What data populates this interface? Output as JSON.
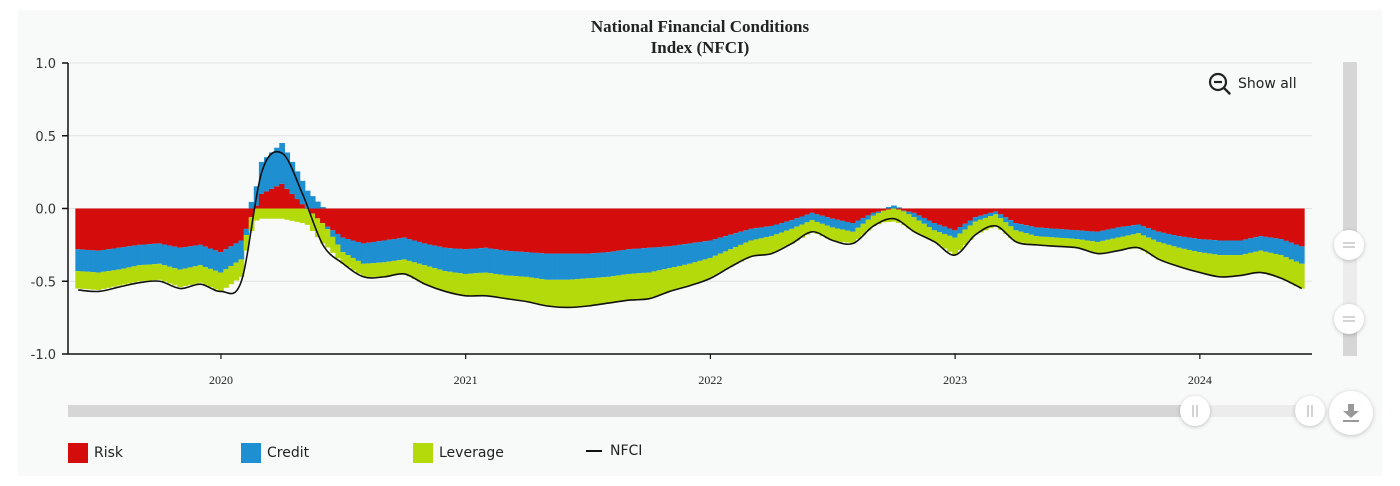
{
  "title_line1": "National Financial Conditions",
  "title_line2": "Index (NFCI)",
  "controls": {
    "show_all_label": "Show all",
    "zoom_out_icon": "magnifier-minus-icon",
    "download_icon": "download-arrow-icon"
  },
  "colors": {
    "risk": "#d40c0c",
    "credit": "#1e8fd0",
    "leverage": "#b5da0c",
    "nfci": "#111111",
    "grid": "#e2e2e2",
    "panel": "#f8f9f9"
  },
  "legend": [
    {
      "key": "risk",
      "label": "Risk",
      "kind": "swatch"
    },
    {
      "key": "credit",
      "label": "Credit",
      "kind": "swatch"
    },
    {
      "key": "leverage",
      "label": "Leverage",
      "kind": "swatch"
    },
    {
      "key": "nfci",
      "label": "NFCI",
      "kind": "line"
    }
  ],
  "chart_data": {
    "type": "bar",
    "stacked": true,
    "title": "National Financial Conditions Index (NFCI)",
    "xlabel": "",
    "ylabel": "",
    "ylim": [
      -1.0,
      1.0
    ],
    "yticks": [
      1.0,
      0.5,
      0.0,
      -0.5,
      -1.0
    ],
    "ytick_labels": [
      "1.0",
      "0.5",
      "0.0",
      "-0.5",
      "-1.0"
    ],
    "xlim": [
      "2019-06",
      "2024-06"
    ],
    "xticks": [
      "2020-01",
      "2021-01",
      "2022-01",
      "2023-01",
      "2024-01"
    ],
    "xtick_labels": [
      "2020",
      "2021",
      "2022",
      "2023",
      "2024"
    ],
    "grid": true,
    "legend_position": "bottom-left",
    "x": [
      "2019-06",
      "2019-07",
      "2019-08",
      "2019-09",
      "2019-10",
      "2019-11",
      "2019-12",
      "2020-01",
      "2020-02",
      "2020-03",
      "2020-04",
      "2020-05",
      "2020-06",
      "2020-07",
      "2020-08",
      "2020-09",
      "2020-10",
      "2020-11",
      "2020-12",
      "2021-01",
      "2021-02",
      "2021-03",
      "2021-04",
      "2021-05",
      "2021-06",
      "2021-07",
      "2021-08",
      "2021-09",
      "2021-10",
      "2021-11",
      "2021-12",
      "2022-01",
      "2022-02",
      "2022-03",
      "2022-04",
      "2022-05",
      "2022-06",
      "2022-07",
      "2022-08",
      "2022-09",
      "2022-10",
      "2022-11",
      "2022-12",
      "2023-01",
      "2023-02",
      "2023-03",
      "2023-04",
      "2023-05",
      "2023-06",
      "2023-07",
      "2023-08",
      "2023-09",
      "2023-10",
      "2023-11",
      "2023-12",
      "2024-01",
      "2024-02",
      "2024-03",
      "2024-04",
      "2024-05",
      "2024-06"
    ],
    "series": [
      {
        "name": "Risk",
        "key": "risk",
        "type": "bar",
        "values": [
          -0.28,
          -0.29,
          -0.27,
          -0.25,
          -0.24,
          -0.27,
          -0.25,
          -0.3,
          -0.22,
          0.1,
          0.17,
          0.03,
          -0.1,
          -0.2,
          -0.24,
          -0.22,
          -0.2,
          -0.24,
          -0.27,
          -0.28,
          -0.27,
          -0.29,
          -0.3,
          -0.31,
          -0.31,
          -0.31,
          -0.3,
          -0.28,
          -0.27,
          -0.26,
          -0.24,
          -0.22,
          -0.18,
          -0.14,
          -0.12,
          -0.08,
          -0.03,
          -0.07,
          -0.1,
          -0.03,
          0.0,
          -0.03,
          -0.1,
          -0.15,
          -0.06,
          -0.02,
          -0.1,
          -0.13,
          -0.14,
          -0.15,
          -0.16,
          -0.13,
          -0.11,
          -0.16,
          -0.19,
          -0.21,
          -0.22,
          -0.22,
          -0.19,
          -0.21,
          -0.26
        ]
      },
      {
        "name": "Credit",
        "key": "credit",
        "type": "bar",
        "values": [
          -0.15,
          -0.15,
          -0.15,
          -0.14,
          -0.14,
          -0.15,
          -0.14,
          -0.14,
          -0.13,
          0.22,
          0.28,
          0.16,
          0.01,
          -0.1,
          -0.14,
          -0.15,
          -0.15,
          -0.15,
          -0.16,
          -0.17,
          -0.17,
          -0.17,
          -0.17,
          -0.18,
          -0.18,
          -0.17,
          -0.17,
          -0.17,
          -0.17,
          -0.15,
          -0.14,
          -0.12,
          -0.1,
          -0.08,
          -0.07,
          -0.06,
          -0.05,
          -0.06,
          -0.06,
          -0.02,
          0.02,
          -0.03,
          -0.05,
          -0.05,
          -0.03,
          -0.02,
          -0.05,
          -0.06,
          -0.06,
          -0.06,
          -0.07,
          -0.07,
          -0.06,
          -0.07,
          -0.08,
          -0.09,
          -0.1,
          -0.1,
          -0.1,
          -0.11,
          -0.12
        ]
      },
      {
        "name": "Leverage",
        "key": "leverage",
        "type": "bar",
        "values": [
          -0.12,
          -0.12,
          -0.11,
          -0.11,
          -0.11,
          -0.12,
          -0.12,
          -0.13,
          -0.12,
          -0.07,
          -0.07,
          -0.1,
          -0.14,
          -0.08,
          -0.09,
          -0.1,
          -0.1,
          -0.13,
          -0.14,
          -0.15,
          -0.16,
          -0.16,
          -0.17,
          -0.18,
          -0.19,
          -0.19,
          -0.18,
          -0.18,
          -0.18,
          -0.16,
          -0.15,
          -0.14,
          -0.12,
          -0.11,
          -0.12,
          -0.1,
          -0.08,
          -0.09,
          -0.08,
          -0.07,
          -0.09,
          -0.1,
          -0.08,
          -0.12,
          -0.09,
          -0.08,
          -0.08,
          -0.06,
          -0.06,
          -0.06,
          -0.08,
          -0.09,
          -0.1,
          -0.12,
          -0.13,
          -0.14,
          -0.15,
          -0.14,
          -0.15,
          -0.16,
          -0.17
        ]
      },
      {
        "name": "NFCI",
        "key": "nfci",
        "type": "line",
        "values": [
          -0.56,
          -0.57,
          -0.54,
          -0.51,
          -0.5,
          -0.55,
          -0.52,
          -0.57,
          -0.5,
          0.25,
          0.38,
          0.1,
          -0.25,
          -0.38,
          -0.47,
          -0.47,
          -0.45,
          -0.52,
          -0.57,
          -0.6,
          -0.6,
          -0.62,
          -0.64,
          -0.67,
          -0.68,
          -0.67,
          -0.65,
          -0.63,
          -0.62,
          -0.57,
          -0.53,
          -0.48,
          -0.4,
          -0.33,
          -0.31,
          -0.24,
          -0.16,
          -0.22,
          -0.24,
          -0.12,
          -0.07,
          -0.16,
          -0.23,
          -0.32,
          -0.18,
          -0.12,
          -0.23,
          -0.25,
          -0.26,
          -0.27,
          -0.31,
          -0.29,
          -0.27,
          -0.35,
          -0.4,
          -0.44,
          -0.47,
          -0.46,
          -0.44,
          -0.48,
          -0.55
        ]
      }
    ]
  }
}
